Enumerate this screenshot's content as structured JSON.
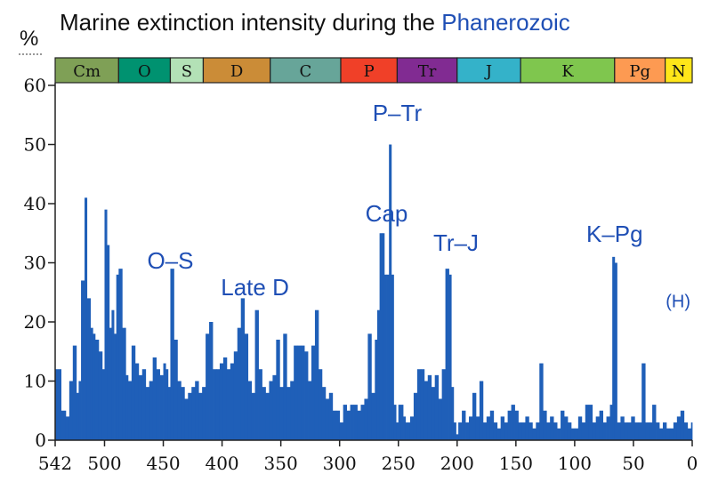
{
  "chart_data": {
    "type": "bar",
    "title_prefix": "Marine extinction intensity during the ",
    "title_link": "Phanerozoic",
    "ylabel": "%",
    "xlabel": "",
    "xlim": [
      542,
      0
    ],
    "ylim": [
      0,
      60
    ],
    "x_ticks": [
      {
        "value": 542,
        "label": "542"
      },
      {
        "value": 500,
        "label": "500"
      },
      {
        "value": 450,
        "label": "450"
      },
      {
        "value": 400,
        "label": "400"
      },
      {
        "value": 350,
        "label": "350"
      },
      {
        "value": 300,
        "label": "300"
      },
      {
        "value": 250,
        "label": "250"
      },
      {
        "value": 200,
        "label": "200"
      },
      {
        "value": 150,
        "label": "150"
      },
      {
        "value": 100,
        "label": "100"
      },
      {
        "value": 50,
        "label": "50"
      },
      {
        "value": 0,
        "label": "0"
      }
    ],
    "y_ticks": [
      {
        "value": 0,
        "label": "0"
      },
      {
        "value": 10,
        "label": "10"
      },
      {
        "value": 20,
        "label": "20"
      },
      {
        "value": 30,
        "label": "30"
      },
      {
        "value": 40,
        "label": "40"
      },
      {
        "value": 50,
        "label": "50"
      },
      {
        "value": 60,
        "label": "60"
      }
    ],
    "bar_color": "#1f5fb8",
    "periods": [
      {
        "label": "Cm",
        "start": 542,
        "end": 488,
        "color": "#7fa056"
      },
      {
        "label": "O",
        "start": 488,
        "end": 444,
        "color": "#009270"
      },
      {
        "label": "S",
        "start": 444,
        "end": 416,
        "color": "#b3e1b6"
      },
      {
        "label": "D",
        "start": 416,
        "end": 359,
        "color": "#cb8c37"
      },
      {
        "label": "C",
        "start": 359,
        "end": 299,
        "color": "#67a599"
      },
      {
        "label": "P",
        "start": 299,
        "end": 251,
        "color": "#f04028"
      },
      {
        "label": "Tr",
        "start": 251,
        "end": 200,
        "color": "#812b92"
      },
      {
        "label": "J",
        "start": 200,
        "end": 146,
        "color": "#34b2c9"
      },
      {
        "label": "K",
        "start": 146,
        "end": 66,
        "color": "#7fc64e"
      },
      {
        "label": "Pg",
        "start": 66,
        "end": 23,
        "color": "#fd9a52"
      },
      {
        "label": "N",
        "start": 23,
        "end": 0,
        "color": "#ffe619"
      }
    ],
    "annotations": [
      {
        "label": "O–S",
        "x": 444,
        "y": 29,
        "size": "large"
      },
      {
        "label": "Late D",
        "x": 372,
        "y": 24.5,
        "size": "large"
      },
      {
        "label": "Cap",
        "x": 260,
        "y": 37,
        "size": "large"
      },
      {
        "label": "P–Tr",
        "x": 251,
        "y": 54,
        "size": "large"
      },
      {
        "label": "Tr–J",
        "x": 201,
        "y": 32,
        "size": "large"
      },
      {
        "label": "K–Pg",
        "x": 66,
        "y": 33.5,
        "size": "large"
      },
      {
        "label": "(H)",
        "x": 12,
        "y": 22.5,
        "size": "small"
      }
    ],
    "x": [
      542,
      537,
      533,
      530,
      527,
      524,
      522,
      520,
      517,
      515,
      512,
      510,
      508,
      505,
      502,
      500,
      498,
      496,
      494,
      492,
      490,
      488,
      485,
      482,
      480,
      477,
      474,
      471,
      468,
      465,
      462,
      459,
      456,
      453,
      450,
      448,
      446,
      444,
      441,
      438,
      435,
      432,
      429,
      426,
      423,
      420,
      417,
      414,
      411,
      408,
      405,
      402,
      399,
      396,
      393,
      390,
      387,
      384,
      381,
      378,
      375,
      372,
      369,
      366,
      363,
      360,
      357,
      354,
      351,
      348,
      345,
      342,
      339,
      336,
      333,
      330,
      327,
      324,
      321,
      318,
      315,
      312,
      309,
      306,
      303,
      300,
      297,
      294,
      291,
      288,
      285,
      282,
      279,
      276,
      273,
      270,
      268,
      266,
      264,
      262,
      260,
      258,
      256,
      254,
      252,
      250,
      248,
      246,
      244,
      242,
      240,
      237,
      234,
      231,
      228,
      225,
      222,
      219,
      216,
      213,
      210,
      207,
      205,
      203,
      201,
      199,
      196,
      193,
      190,
      187,
      184,
      181,
      178,
      175,
      172,
      169,
      166,
      163,
      160,
      157,
      154,
      151,
      148,
      145,
      142,
      139,
      136,
      133,
      130,
      127,
      124,
      121,
      118,
      115,
      112,
      109,
      106,
      103,
      100,
      97,
      94,
      91,
      88,
      85,
      82,
      79,
      76,
      73,
      70,
      68,
      66,
      64,
      61,
      58,
      55,
      52,
      49,
      46,
      43,
      40,
      37,
      34,
      31,
      28,
      25,
      22,
      19,
      16,
      13,
      10,
      7,
      4,
      1
    ],
    "values": [
      12,
      5,
      4,
      10,
      16,
      8,
      10,
      27,
      41,
      24,
      19,
      18,
      17,
      15,
      12,
      39,
      33,
      19,
      22,
      18,
      28,
      29,
      19,
      11,
      10,
      16,
      13,
      11,
      12,
      9,
      10,
      14,
      12,
      11,
      13,
      12,
      9,
      29,
      17,
      10,
      9,
      7,
      8,
      9,
      10,
      8,
      9,
      18,
      20,
      12,
      12,
      13,
      14,
      12,
      13,
      15,
      19,
      24,
      18,
      10,
      8,
      22,
      12,
      9,
      8,
      10,
      11,
      17,
      9,
      18,
      9,
      10,
      16,
      16,
      16,
      15,
      10,
      16,
      22,
      12,
      9,
      7,
      8,
      5,
      5,
      3,
      6,
      5,
      6,
      6,
      5,
      6,
      7,
      18,
      8,
      17,
      22,
      35,
      35,
      28,
      28,
      50,
      28,
      6,
      3,
      6,
      6,
      4,
      3,
      3,
      4,
      8,
      12,
      12,
      10,
      11,
      9,
      11,
      7,
      12,
      29,
      28,
      9,
      3,
      1,
      3,
      5,
      3,
      4,
      8,
      4,
      10,
      3,
      4,
      5,
      3,
      2,
      4,
      3,
      5,
      6,
      5,
      3,
      3,
      4,
      3,
      2,
      3,
      13,
      5,
      3,
      4,
      3,
      2,
      5,
      4,
      3,
      2,
      2,
      4,
      3,
      6,
      6,
      3,
      4,
      5,
      3,
      4,
      6,
      31,
      30,
      3,
      4,
      3,
      3,
      4,
      3,
      3,
      13,
      3,
      3,
      6,
      3,
      2,
      3,
      2,
      2,
      3,
      4,
      5,
      3,
      2,
      3
    ]
  }
}
